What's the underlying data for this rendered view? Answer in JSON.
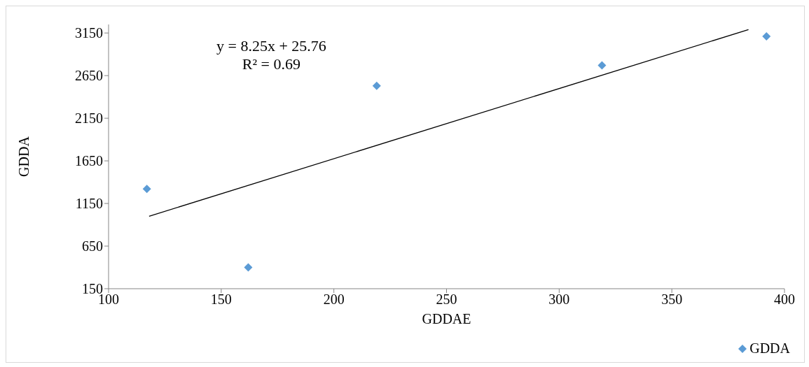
{
  "chart_data": {
    "type": "scatter",
    "xlabel": "GDDAE",
    "ylabel": "GDDA",
    "annotations": [
      "y = 8.25x + 25.76",
      "R² = 0.69"
    ],
    "series": [
      {
        "name": "GDDA",
        "color": "#5b9bd5",
        "marker": "diamond",
        "x": [
          117,
          162,
          219,
          319,
          392
        ],
        "values": [
          1320,
          400,
          2530,
          2770,
          3110
        ]
      },
      {
        "type": "line",
        "color": "#000000",
        "marker": "none",
        "x": [
          118,
          384
        ],
        "values": [
          1000,
          3190
        ]
      }
    ],
    "xlim": [
      100,
      400
    ],
    "xticks": [
      100,
      150,
      200,
      250,
      300,
      350,
      400
    ],
    "ylim": [
      150,
      3250
    ],
    "yticks": [
      150,
      650,
      1150,
      1650,
      2150,
      2650,
      3150
    ],
    "line_style": "solid",
    "legend": "bottom right"
  }
}
